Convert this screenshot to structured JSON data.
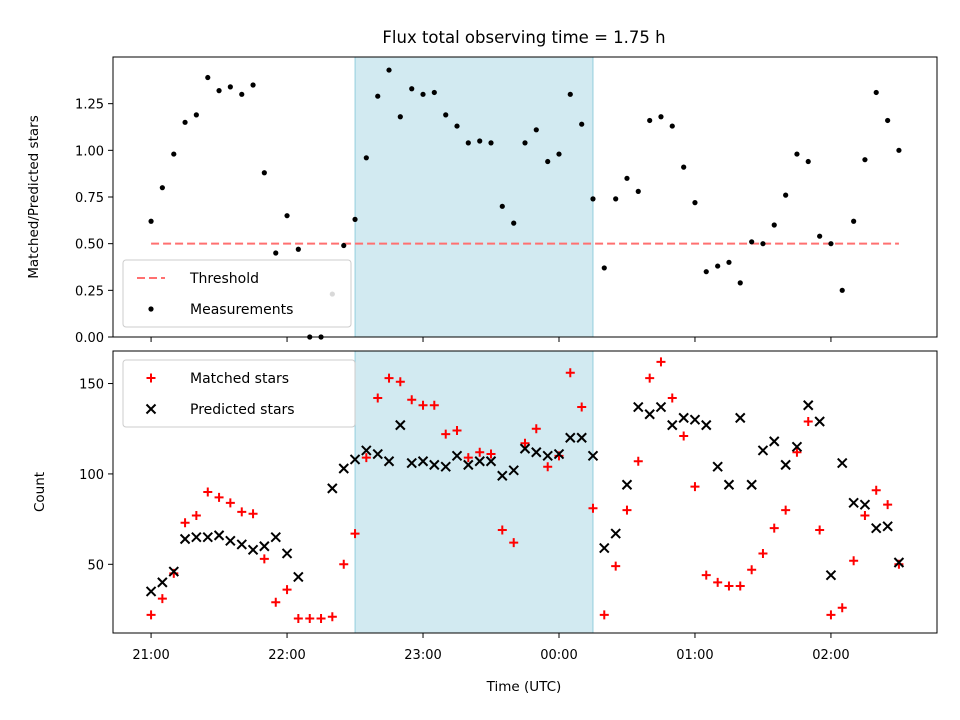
{
  "figure": {
    "title": "Flux total observing time = 1.75 h",
    "xlabel": "Time (UTC)"
  },
  "chart_data": [
    {
      "type": "scatter",
      "ylabel": "Matched/Predicted stars",
      "xlim": [
        -0.28,
        5.78
      ],
      "ylim": [
        0,
        1.5
      ],
      "yticks": [
        0.0,
        0.25,
        0.5,
        0.75,
        1.0,
        1.25
      ],
      "ytick_labels": [
        "0.00",
        "0.25",
        "0.50",
        "0.75",
        "1.00",
        "1.25"
      ],
      "xticks": [
        0,
        1,
        2,
        3,
        4,
        5
      ],
      "xtick_labels": [
        "21:00",
        "22:00",
        "23:00",
        "00:00",
        "01:00",
        "02:00"
      ],
      "shaded_region": {
        "x": [
          1.5,
          3.25
        ],
        "color": "#add8e6"
      },
      "threshold": {
        "name": "Threshold",
        "y": 0.5,
        "x": [
          0,
          5.5
        ],
        "color": "#ff7070"
      },
      "legend": {
        "placement": "lower-left",
        "entries": [
          "Threshold",
          "Measurements"
        ]
      },
      "series": [
        {
          "name": "Measurements",
          "marker": "dot",
          "color": "#000000",
          "x": [
            0.0,
            0.083,
            0.167,
            0.25,
            0.333,
            0.417,
            0.5,
            0.583,
            0.667,
            0.75,
            0.833,
            0.917,
            1.0,
            1.083,
            1.167,
            1.25,
            1.333,
            1.417,
            1.5,
            1.583,
            1.667,
            1.75,
            1.833,
            1.917,
            2.0,
            2.083,
            2.167,
            2.25,
            2.333,
            2.417,
            2.5,
            2.583,
            2.667,
            2.75,
            2.833,
            2.917,
            3.0,
            3.083,
            3.167,
            3.25,
            3.333,
            3.417,
            3.5,
            3.583,
            3.667,
            3.75,
            3.833,
            3.917,
            4.0,
            4.083,
            4.167,
            4.25,
            4.333,
            4.417,
            4.5,
            4.583,
            4.667,
            4.75,
            4.833,
            4.917,
            5.0,
            5.083,
            5.167,
            5.25,
            5.333,
            5.417,
            5.5
          ],
          "y": [
            0.62,
            0.8,
            0.98,
            1.15,
            1.19,
            1.39,
            1.32,
            1.34,
            1.3,
            1.35,
            0.88,
            0.45,
            0.65,
            0.47,
            0.0,
            0.0,
            0.23,
            0.49,
            0.63,
            0.96,
            1.29,
            1.43,
            1.18,
            1.33,
            1.3,
            1.31,
            1.19,
            1.13,
            1.04,
            1.05,
            1.04,
            0.7,
            0.61,
            1.04,
            1.11,
            0.94,
            0.98,
            1.3,
            1.14,
            0.74,
            0.37,
            0.74,
            0.85,
            0.78,
            1.16,
            1.18,
            1.13,
            0.91,
            0.72,
            0.35,
            0.38,
            0.4,
            0.29,
            0.51,
            0.5,
            0.6,
            0.76,
            0.98,
            0.94,
            0.54,
            0.5,
            0.25,
            0.62,
            0.95,
            1.31,
            1.16,
            1.0
          ]
        }
      ]
    },
    {
      "type": "scatter",
      "ylabel": "Count",
      "xlim": [
        -0.28,
        5.78
      ],
      "ylim": [
        12,
        168
      ],
      "yticks": [
        50,
        100,
        150
      ],
      "ytick_labels": [
        "50",
        "100",
        "150"
      ],
      "xticks": [
        0,
        1,
        2,
        3,
        4,
        5
      ],
      "xtick_labels": [
        "21:00",
        "22:00",
        "23:00",
        "00:00",
        "01:00",
        "02:00"
      ],
      "shaded_region": {
        "x": [
          1.5,
          3.25
        ],
        "color": "#add8e6"
      },
      "legend": {
        "placement": "upper-left",
        "entries": [
          "Matched stars",
          "Predicted stars"
        ]
      },
      "series": [
        {
          "name": "Matched stars",
          "marker": "plus",
          "color": "#ff0000",
          "x": [
            0.0,
            0.083,
            0.167,
            0.25,
            0.333,
            0.417,
            0.5,
            0.583,
            0.667,
            0.75,
            0.833,
            0.917,
            1.0,
            1.083,
            1.167,
            1.25,
            1.333,
            1.417,
            1.5,
            1.583,
            1.667,
            1.75,
            1.833,
            1.917,
            2.0,
            2.083,
            2.167,
            2.25,
            2.333,
            2.417,
            2.5,
            2.583,
            2.667,
            2.75,
            2.833,
            2.917,
            3.0,
            3.083,
            3.167,
            3.25,
            3.333,
            3.417,
            3.5,
            3.583,
            3.667,
            3.75,
            3.833,
            3.917,
            4.0,
            4.083,
            4.167,
            4.25,
            4.333,
            4.417,
            4.5,
            4.583,
            4.667,
            4.75,
            4.833,
            4.917,
            5.0,
            5.083,
            5.167,
            5.25,
            5.333,
            5.417,
            5.5
          ],
          "y": [
            22,
            31,
            45,
            73,
            77,
            90,
            87,
            84,
            79,
            78,
            53,
            29,
            36,
            20,
            20,
            20,
            21,
            50,
            67,
            109,
            142,
            153,
            151,
            141,
            138,
            138,
            122,
            124,
            109,
            112,
            111,
            69,
            62,
            117,
            125,
            104,
            110,
            156,
            137,
            81,
            22,
            49,
            80,
            107,
            153,
            162,
            142,
            121,
            93,
            44,
            40,
            38,
            38,
            47,
            56,
            70,
            80,
            112,
            129,
            69,
            22,
            26,
            52,
            77,
            91,
            83,
            50
          ]
        },
        {
          "name": "Predicted stars",
          "marker": "x",
          "color": "#000000",
          "x": [
            0.0,
            0.083,
            0.167,
            0.25,
            0.333,
            0.417,
            0.5,
            0.583,
            0.667,
            0.75,
            0.833,
            0.917,
            1.0,
            1.083,
            1.333,
            1.417,
            1.5,
            1.583,
            1.667,
            1.75,
            1.833,
            1.917,
            2.0,
            2.083,
            2.167,
            2.25,
            2.333,
            2.417,
            2.5,
            2.583,
            2.667,
            2.75,
            2.833,
            2.917,
            3.0,
            3.083,
            3.167,
            3.25,
            3.333,
            3.417,
            3.5,
            3.583,
            3.667,
            3.75,
            3.833,
            3.917,
            4.0,
            4.083,
            4.167,
            4.25,
            4.333,
            4.417,
            4.5,
            4.583,
            4.667,
            4.75,
            4.833,
            4.917,
            5.0,
            5.083,
            5.167,
            5.25,
            5.333,
            5.417,
            5.5
          ],
          "y": [
            35,
            40,
            46,
            64,
            65,
            65,
            66,
            63,
            61,
            58,
            60,
            65,
            56,
            43,
            92,
            103,
            108,
            113,
            111,
            107,
            127,
            106,
            107,
            105,
            104,
            110,
            105,
            107,
            107,
            99,
            102,
            114,
            112,
            110,
            111,
            120,
            120,
            110,
            59,
            67,
            94,
            137,
            133,
            137,
            127,
            131,
            130,
            127,
            104,
            94,
            131,
            94,
            113,
            118,
            105,
            115,
            138,
            129,
            44,
            106,
            84,
            83,
            70,
            71,
            51
          ]
        }
      ]
    }
  ]
}
